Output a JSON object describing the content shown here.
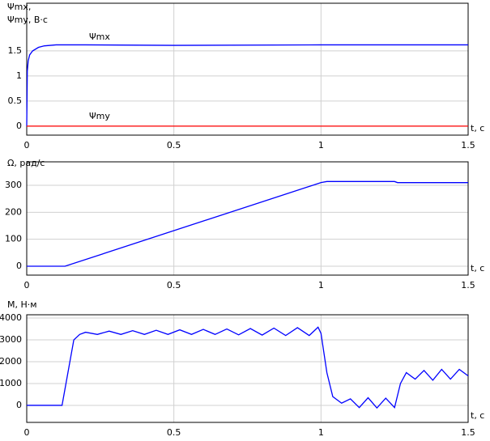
{
  "chart_data": [
    {
      "type": "line",
      "ylabel": [
        "Ψmx,",
        "Ψmy, В·с"
      ],
      "xlabel": "t, c",
      "x": [
        0,
        0.002,
        0.005,
        0.01,
        0.02,
        0.04,
        0.06,
        0.1,
        0.2,
        0.5,
        1,
        1.5
      ],
      "series": [
        {
          "name": "Ψmx",
          "color": "#0000ff",
          "values": [
            0,
            1.1,
            1.3,
            1.42,
            1.5,
            1.57,
            1.6,
            1.62,
            1.62,
            1.61,
            1.62,
            1.62
          ]
        },
        {
          "name": "Ψmy",
          "color": "#ff0000",
          "values": [
            0,
            0,
            0,
            0,
            0,
            0,
            0,
            0,
            0,
            0,
            0,
            0
          ]
        }
      ],
      "xlim": [
        0,
        1.5
      ],
      "xticks": [
        0,
        0.5,
        1,
        1.5
      ],
      "ylim": [
        -0.18,
        2.45
      ],
      "yticks": [
        0,
        0.5,
        1,
        1.5
      ],
      "grid": true
    },
    {
      "type": "line",
      "ylabel": [
        "Ω, рад/с"
      ],
      "xlabel": "t, c",
      "x": [
        0,
        0.13,
        1.0,
        1.02,
        1.25,
        1.26,
        1.5
      ],
      "series": [
        {
          "name": "Ω",
          "color": "#0000ff",
          "values": [
            0,
            0,
            310,
            314,
            314,
            310,
            310
          ]
        }
      ],
      "xlim": [
        0,
        1.5
      ],
      "xticks": [
        0,
        0.5,
        1,
        1.5
      ],
      "ylim": [
        -33,
        387
      ],
      "yticks": [
        0,
        100,
        200,
        300
      ],
      "grid": true
    },
    {
      "type": "line",
      "ylabel": [
        "М, Н·м"
      ],
      "xlabel": "t, c",
      "x": [
        0,
        0.12,
        0.14,
        0.16,
        0.18,
        0.2,
        0.24,
        0.28,
        0.32,
        0.36,
        0.4,
        0.44,
        0.48,
        0.52,
        0.56,
        0.6,
        0.64,
        0.68,
        0.72,
        0.76,
        0.8,
        0.84,
        0.88,
        0.92,
        0.96,
        0.99,
        1.0,
        1.02,
        1.04,
        1.07,
        1.1,
        1.13,
        1.16,
        1.19,
        1.22,
        1.25,
        1.27,
        1.29,
        1.32,
        1.35,
        1.38,
        1.41,
        1.44,
        1.47,
        1.5
      ],
      "series": [
        {
          "name": "М",
          "color": "#0000ff",
          "values": [
            0,
            0,
            1500,
            3000,
            3250,
            3350,
            3250,
            3400,
            3250,
            3420,
            3250,
            3440,
            3250,
            3460,
            3250,
            3480,
            3250,
            3500,
            3230,
            3520,
            3220,
            3540,
            3200,
            3560,
            3200,
            3580,
            3300,
            1500,
            400,
            100,
            300,
            -100,
            350,
            -120,
            330,
            -100,
            1000,
            1500,
            1200,
            1600,
            1150,
            1650,
            1200,
            1650,
            1350
          ]
        }
      ],
      "xlim": [
        0,
        1.5
      ],
      "xticks": [
        0,
        0.5,
        1,
        1.5
      ],
      "ylim": [
        -780,
        4150
      ],
      "yticks": [
        0,
        1000,
        2000,
        3000,
        4000
      ],
      "grid": true
    }
  ]
}
